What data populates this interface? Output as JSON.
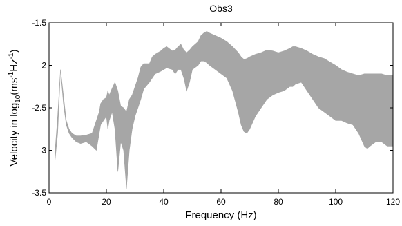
{
  "chart_data": {
    "type": "area",
    "title": "Obs3",
    "xlabel": "Frequency (Hz)",
    "ylabel": {
      "prefix": "Velocity in log",
      "sub": "10",
      "mid": "(ms",
      "sup1": "-1",
      "mid2": "Hz",
      "sup2": "-1",
      "suffix": ")"
    },
    "xlim": [
      0,
      120
    ],
    "ylim": [
      -3.5,
      -1.5
    ],
    "x_ticks": [
      "0",
      "20",
      "40",
      "60",
      "80",
      "100",
      "120"
    ],
    "y_ticks": [
      "-1.5",
      "-2",
      "-2.5",
      "-3",
      "-3.5"
    ],
    "grid": false,
    "band_color": "#a6a6a6",
    "series": [
      {
        "upper": [
          [
            2.0,
            -3.05
          ],
          [
            3.0,
            -2.6
          ],
          [
            4.0,
            -2.05
          ],
          [
            5.0,
            -2.35
          ],
          [
            6.0,
            -2.65
          ],
          [
            7.0,
            -2.75
          ],
          [
            8.0,
            -2.8
          ],
          [
            9.5,
            -2.83
          ],
          [
            11.0,
            -2.83
          ],
          [
            13.0,
            -2.82
          ],
          [
            15.0,
            -2.8
          ],
          [
            16.5,
            -2.65
          ],
          [
            17.5,
            -2.55
          ],
          [
            18.0,
            -2.45
          ],
          [
            19.0,
            -2.4
          ],
          [
            20.0,
            -2.38
          ],
          [
            20.5,
            -2.3
          ],
          [
            21.0,
            -2.35
          ],
          [
            22.0,
            -2.27
          ],
          [
            23.0,
            -2.2
          ],
          [
            24.0,
            -2.3
          ],
          [
            25.0,
            -2.48
          ],
          [
            26.0,
            -2.5
          ],
          [
            27.0,
            -2.55
          ],
          [
            28.0,
            -2.4
          ],
          [
            29.0,
            -2.35
          ],
          [
            30.0,
            -2.25
          ],
          [
            31.0,
            -2.15
          ],
          [
            32.0,
            -2.02
          ],
          [
            33.0,
            -1.98
          ],
          [
            35.0,
            -1.98
          ],
          [
            36.0,
            -1.9
          ],
          [
            37.0,
            -1.87
          ],
          [
            39.0,
            -1.83
          ],
          [
            40.0,
            -1.8
          ],
          [
            41.0,
            -1.78
          ],
          [
            43.0,
            -1.83
          ],
          [
            44.0,
            -1.82
          ],
          [
            45.0,
            -1.78
          ],
          [
            46.0,
            -1.75
          ],
          [
            47.0,
            -1.82
          ],
          [
            48.0,
            -1.85
          ],
          [
            49.0,
            -1.82
          ],
          [
            50.0,
            -1.78
          ],
          [
            52.0,
            -1.72
          ],
          [
            53.0,
            -1.65
          ],
          [
            54.0,
            -1.62
          ],
          [
            55.0,
            -1.6
          ],
          [
            56.0,
            -1.62
          ],
          [
            58.0,
            -1.65
          ],
          [
            60.0,
            -1.68
          ],
          [
            62.0,
            -1.72
          ],
          [
            64.0,
            -1.78
          ],
          [
            66.0,
            -1.85
          ],
          [
            67.0,
            -1.9
          ],
          [
            68.0,
            -1.93
          ],
          [
            69.0,
            -1.92
          ],
          [
            70.0,
            -1.9
          ],
          [
            72.0,
            -1.87
          ],
          [
            74.0,
            -1.85
          ],
          [
            76.0,
            -1.82
          ],
          [
            78.0,
            -1.83
          ],
          [
            80.0,
            -1.85
          ],
          [
            82.0,
            -1.83
          ],
          [
            84.0,
            -1.8
          ],
          [
            85.0,
            -1.78
          ],
          [
            86.0,
            -1.78
          ],
          [
            88.0,
            -1.8
          ],
          [
            90.0,
            -1.83
          ],
          [
            92.0,
            -1.87
          ],
          [
            94.0,
            -1.9
          ],
          [
            96.0,
            -1.92
          ],
          [
            98.0,
            -1.96
          ],
          [
            100.0,
            -2.0
          ],
          [
            102.0,
            -2.05
          ],
          [
            104.0,
            -2.08
          ],
          [
            106.0,
            -2.1
          ],
          [
            108.0,
            -2.12
          ],
          [
            110.0,
            -2.1
          ],
          [
            112.0,
            -2.1
          ],
          [
            114.0,
            -2.1
          ],
          [
            116.0,
            -2.1
          ],
          [
            118.0,
            -2.12
          ],
          [
            120.0,
            -2.12
          ]
        ],
        "lower": [
          [
            2.0,
            -3.15
          ],
          [
            3.0,
            -2.8
          ],
          [
            4.0,
            -2.05
          ],
          [
            5.0,
            -2.45
          ],
          [
            6.0,
            -2.7
          ],
          [
            7.0,
            -2.8
          ],
          [
            8.0,
            -2.85
          ],
          [
            9.5,
            -2.9
          ],
          [
            11.0,
            -2.92
          ],
          [
            13.0,
            -2.9
          ],
          [
            15.0,
            -2.95
          ],
          [
            16.5,
            -3.0
          ],
          [
            17.5,
            -2.8
          ],
          [
            18.0,
            -2.7
          ],
          [
            19.0,
            -2.65
          ],
          [
            20.0,
            -2.6
          ],
          [
            20.5,
            -2.75
          ],
          [
            21.0,
            -2.65
          ],
          [
            22.0,
            -2.55
          ],
          [
            23.0,
            -2.75
          ],
          [
            24.0,
            -3.25
          ],
          [
            25.0,
            -2.9
          ],
          [
            26.0,
            -3.0
          ],
          [
            27.0,
            -3.45
          ],
          [
            28.0,
            -3.0
          ],
          [
            29.0,
            -2.75
          ],
          [
            30.0,
            -2.6
          ],
          [
            31.0,
            -2.5
          ],
          [
            32.0,
            -2.4
          ],
          [
            33.0,
            -2.28
          ],
          [
            35.0,
            -2.2
          ],
          [
            36.0,
            -2.15
          ],
          [
            37.0,
            -2.1
          ],
          [
            39.0,
            -2.07
          ],
          [
            40.0,
            -2.05
          ],
          [
            41.0,
            -2.03
          ],
          [
            43.0,
            -2.05
          ],
          [
            44.0,
            -2.1
          ],
          [
            45.0,
            -2.05
          ],
          [
            46.0,
            -2.05
          ],
          [
            47.0,
            -2.15
          ],
          [
            48.0,
            -2.3
          ],
          [
            49.0,
            -2.2
          ],
          [
            50.0,
            -2.05
          ],
          [
            52.0,
            -2.0
          ],
          [
            53.0,
            -1.95
          ],
          [
            54.0,
            -1.95
          ],
          [
            55.0,
            -1.97
          ],
          [
            56.0,
            -2.0
          ],
          [
            58.0,
            -2.05
          ],
          [
            60.0,
            -2.1
          ],
          [
            62.0,
            -2.15
          ],
          [
            64.0,
            -2.3
          ],
          [
            66.0,
            -2.55
          ],
          [
            67.0,
            -2.7
          ],
          [
            68.0,
            -2.78
          ],
          [
            69.0,
            -2.8
          ],
          [
            70.0,
            -2.75
          ],
          [
            72.0,
            -2.6
          ],
          [
            74.0,
            -2.5
          ],
          [
            76.0,
            -2.4
          ],
          [
            78.0,
            -2.35
          ],
          [
            80.0,
            -2.32
          ],
          [
            82.0,
            -2.3
          ],
          [
            84.0,
            -2.25
          ],
          [
            85.0,
            -2.25
          ],
          [
            86.0,
            -2.22
          ],
          [
            88.0,
            -2.2
          ],
          [
            90.0,
            -2.3
          ],
          [
            92.0,
            -2.4
          ],
          [
            94.0,
            -2.5
          ],
          [
            96.0,
            -2.55
          ],
          [
            98.0,
            -2.6
          ],
          [
            100.0,
            -2.65
          ],
          [
            102.0,
            -2.65
          ],
          [
            104.0,
            -2.68
          ],
          [
            106.0,
            -2.7
          ],
          [
            108.0,
            -2.8
          ],
          [
            110.0,
            -2.95
          ],
          [
            111.0,
            -2.98
          ],
          [
            112.0,
            -2.95
          ],
          [
            114.0,
            -2.9
          ],
          [
            116.0,
            -2.9
          ],
          [
            118.0,
            -2.95
          ],
          [
            120.0,
            -2.95
          ]
        ]
      }
    ]
  }
}
